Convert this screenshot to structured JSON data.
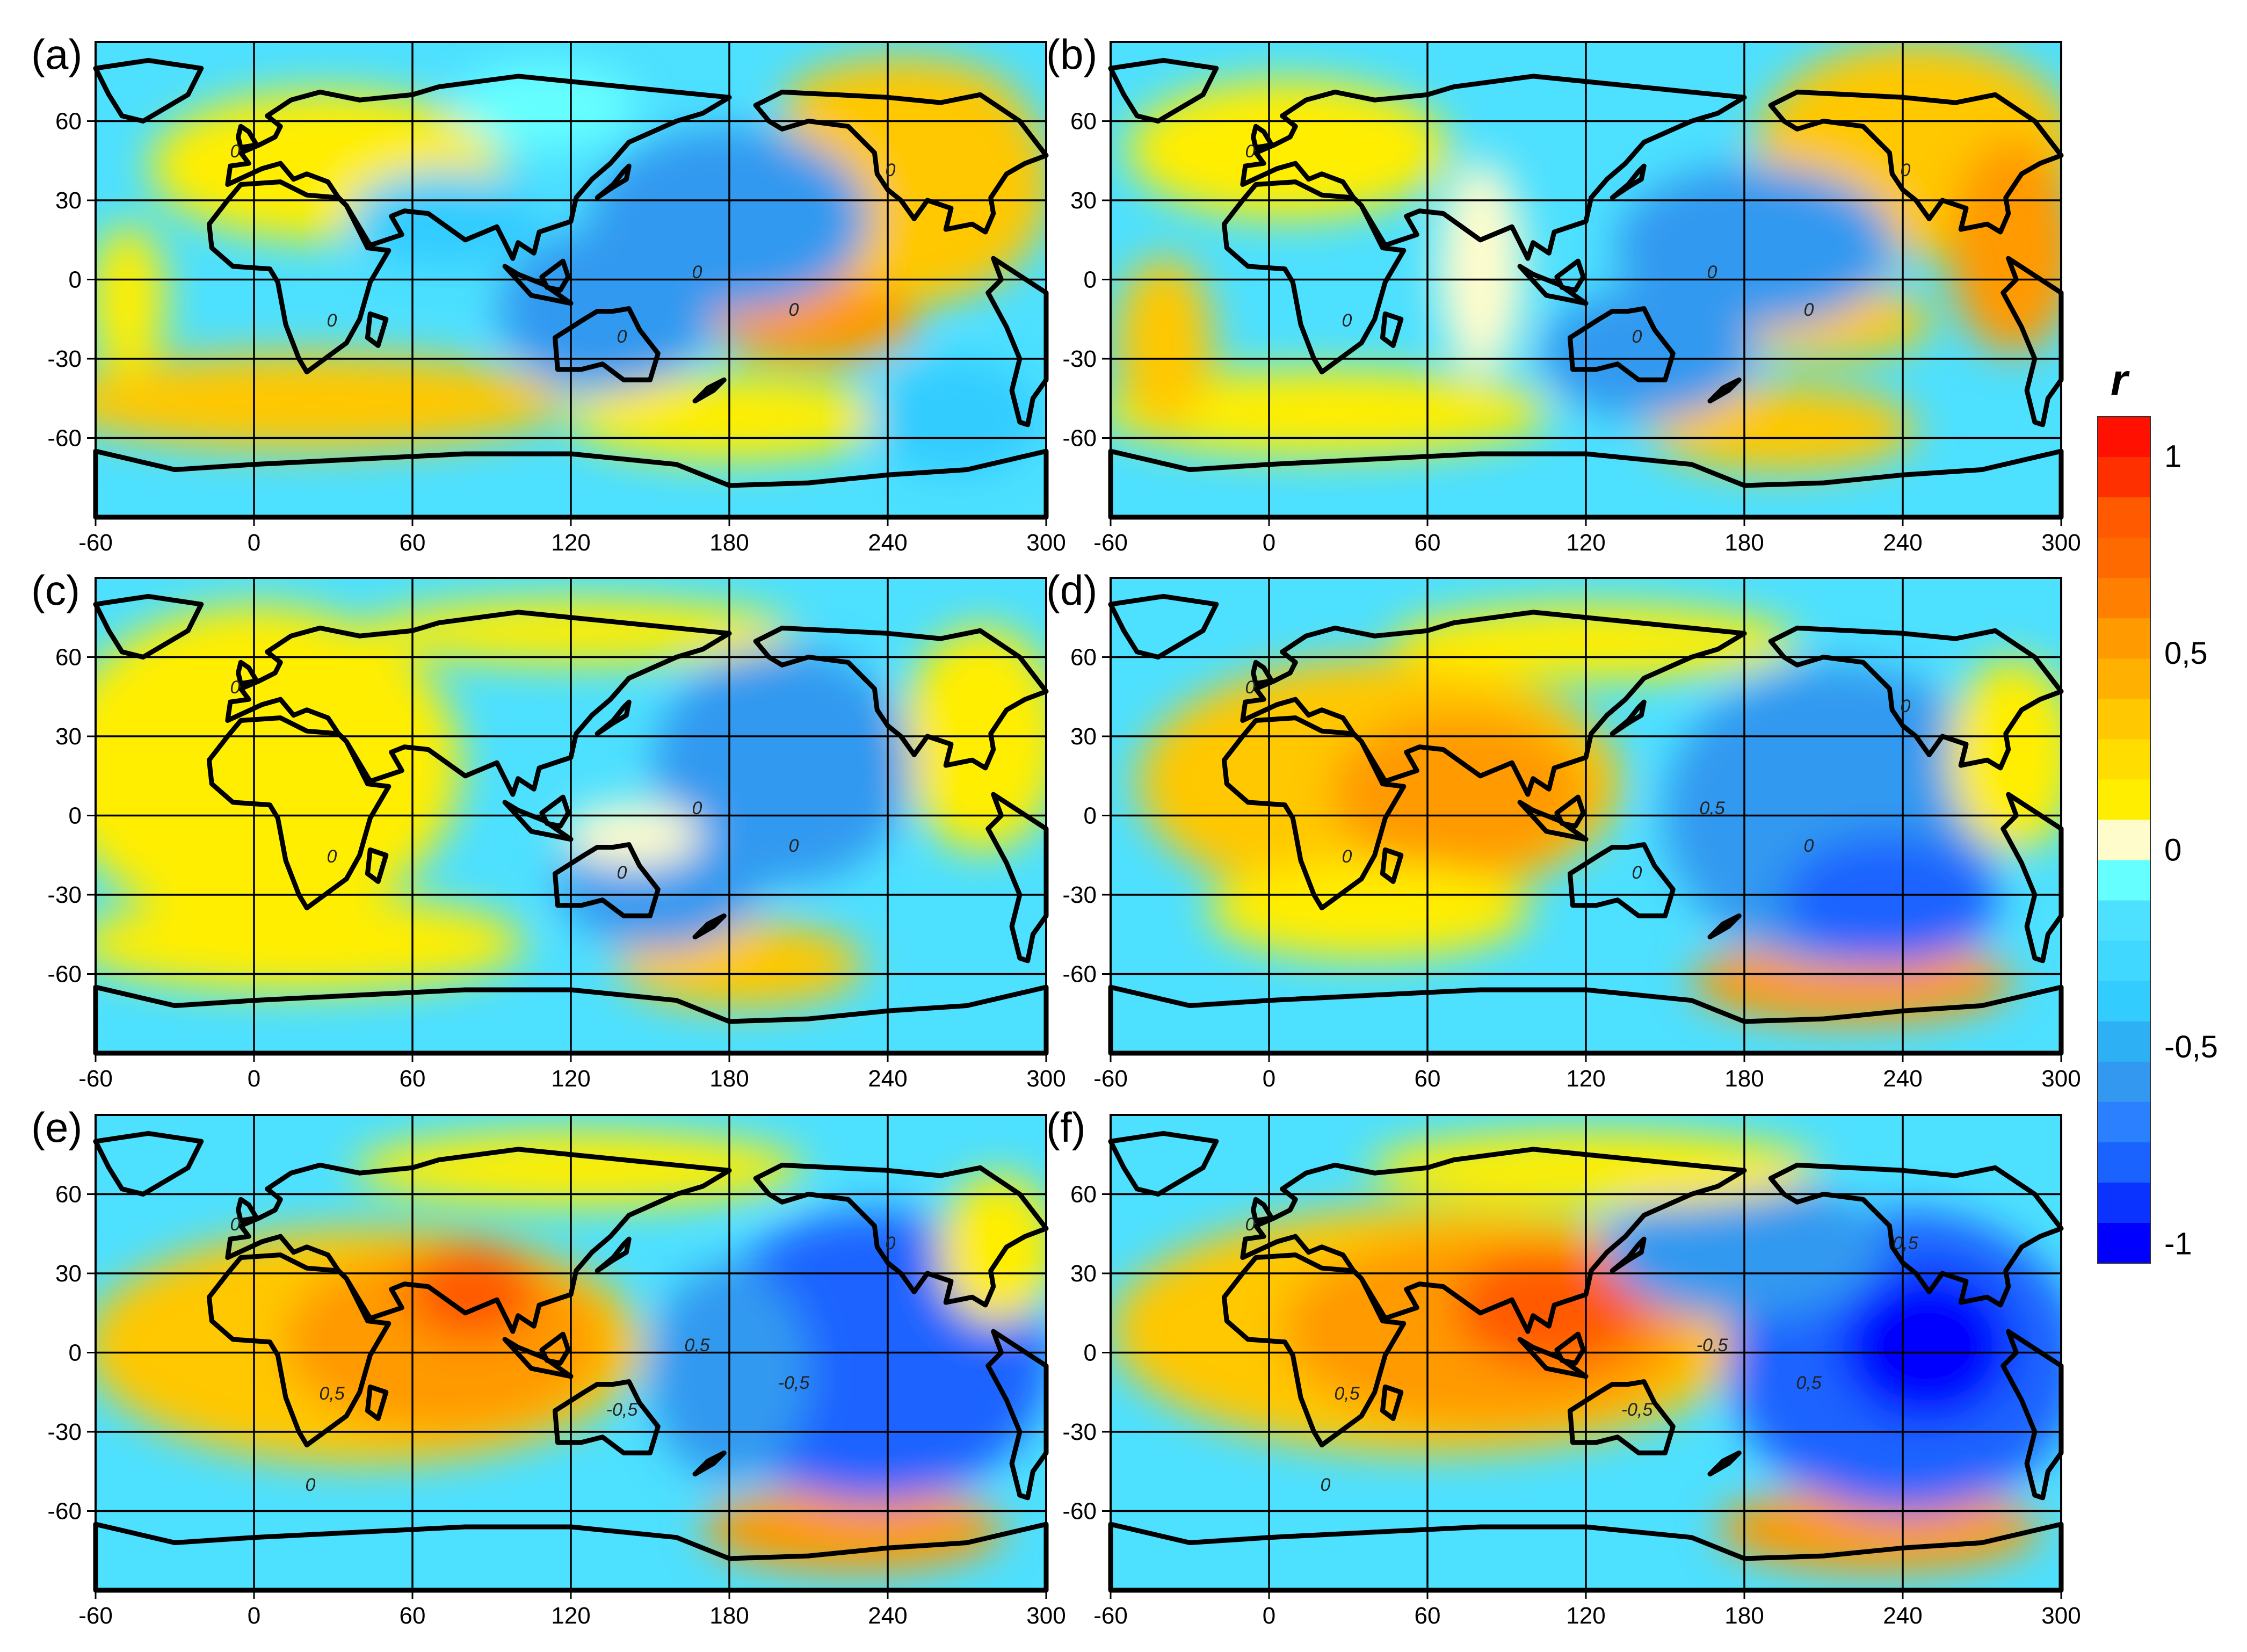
{
  "colors": {
    "blue_dark": "#0000ff",
    "blue": "#1a63ff",
    "blue_mid": "#3399f0",
    "cyan_mid": "#33ccff",
    "cyan": "#4de0ff",
    "cyan_light": "#66ffff",
    "cream": "#fffccc",
    "yellow": "#ffee00",
    "yellow_orange": "#ffc800",
    "orange": "#ff9a00",
    "red_orange": "#ff5a00",
    "red": "#ff0000",
    "coast": "#000000",
    "grid": "#000000"
  },
  "panels": [
    {
      "label": "(a)",
      "contour_labels": [
        "0",
        "0",
        "0",
        "0",
        "0",
        "0"
      ]
    },
    {
      "label": "(b)",
      "contour_labels": [
        "0",
        "0",
        "0",
        "0",
        "0",
        "0"
      ]
    },
    {
      "label": "(c)",
      "contour_labels": [
        "0",
        "0",
        "0",
        "0",
        "0"
      ]
    },
    {
      "label": "(d)",
      "contour_labels": [
        "0",
        "0",
        "0",
        "0",
        "0,5",
        "0"
      ]
    },
    {
      "label": "(e)",
      "contour_labels": [
        "0",
        "0,5",
        "-0,5",
        "-0,5",
        "0,5",
        "0",
        "0"
      ]
    },
    {
      "label": "(f)",
      "contour_labels": [
        "0",
        "0,5",
        "0,5",
        "-0,5",
        "-0,5",
        "0,5",
        "0"
      ]
    }
  ],
  "axes": {
    "x_ticks": [
      "-60",
      "0",
      "60",
      "120",
      "180",
      "240",
      "300"
    ],
    "y_ticks": [
      "60",
      "30",
      "0",
      "-30",
      "-60"
    ],
    "x_range": [
      -60,
      300
    ],
    "y_range": [
      -90,
      90
    ]
  },
  "colorbar": {
    "title": "r",
    "tick_labels": [
      "1",
      "0,5",
      "0",
      "-0,5",
      "-1"
    ],
    "levels": [
      -1,
      -0.9,
      -0.8,
      -0.7,
      -0.6,
      -0.5,
      -0.4,
      -0.3,
      -0.2,
      -0.1,
      0,
      0.1,
      0.2,
      0.3,
      0.4,
      0.5,
      0.6,
      0.7,
      0.8,
      0.9,
      1,
      1.1
    ]
  }
}
